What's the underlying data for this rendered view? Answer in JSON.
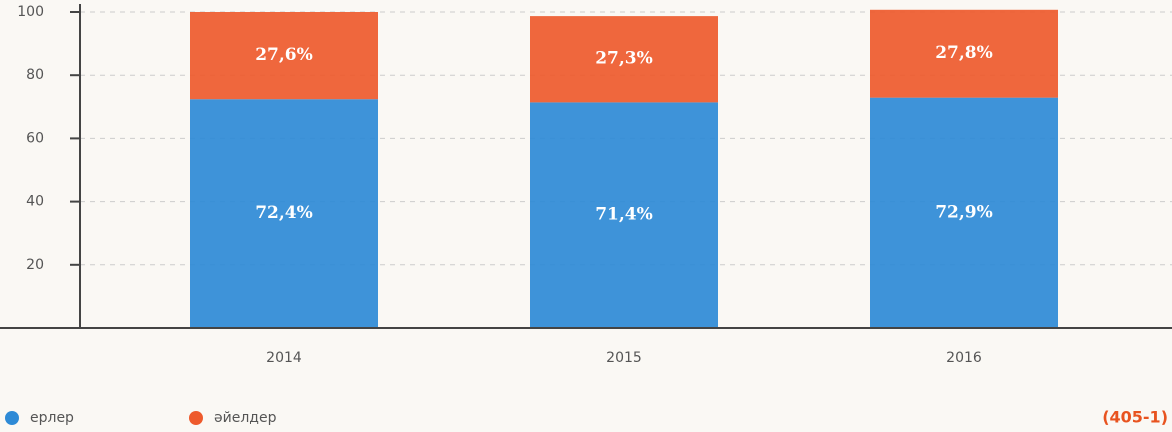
{
  "chart_data": {
    "type": "stacked-bar",
    "categories": [
      "2014",
      "2015",
      "2016"
    ],
    "series": [
      {
        "name": "ерлер",
        "color": "#2e8ad6",
        "values": [
          72.4,
          71.4,
          72.9
        ],
        "value_labels": [
          "72,4%",
          "71,4%",
          "72,9%"
        ]
      },
      {
        "name": "әйелдер",
        "color": "#ee5a2c",
        "values": [
          27.6,
          27.3,
          27.8
        ],
        "value_labels": [
          "27,6%",
          "27,3%",
          "27,8%"
        ]
      }
    ],
    "ylim": [
      0,
      100
    ],
    "yticks": [
      20,
      40,
      60,
      80,
      100
    ],
    "grid": true,
    "annotation": "(405-1)"
  }
}
